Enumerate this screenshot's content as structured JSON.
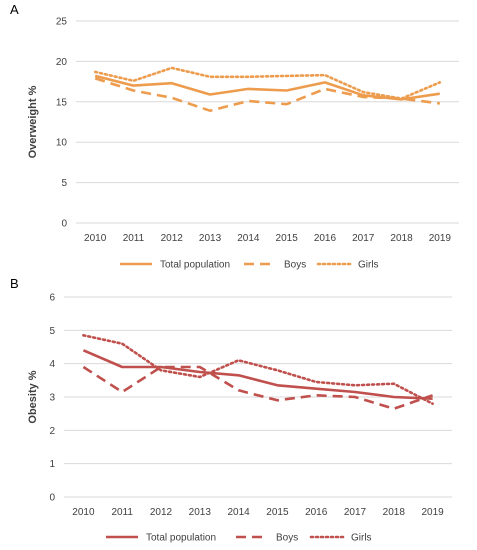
{
  "chart_data": [
    {
      "panel": "A",
      "type": "line",
      "ylabel": "Overweight %",
      "xlabel": "",
      "ylim": [
        0,
        25
      ],
      "yticks": [
        0,
        5,
        10,
        15,
        20,
        25
      ],
      "categories": [
        "2010",
        "2011",
        "2012",
        "2013",
        "2014",
        "2015",
        "2016",
        "2017",
        "2018",
        "2019"
      ],
      "color": "#ed9c4e",
      "grid": "horizontal",
      "legend": "bottom",
      "series": [
        {
          "name": "Total population",
          "style": "solid",
          "values": [
            18.2,
            17.0,
            17.3,
            15.9,
            16.6,
            16.4,
            17.4,
            15.8,
            15.3,
            16.0
          ]
        },
        {
          "name": "Boys",
          "style": "dashed",
          "values": [
            17.9,
            16.4,
            15.5,
            13.9,
            15.1,
            14.7,
            16.6,
            15.6,
            15.4,
            14.8
          ]
        },
        {
          "name": "Girls",
          "style": "dotted",
          "values": [
            18.7,
            17.6,
            19.2,
            18.1,
            18.1,
            18.2,
            18.3,
            16.2,
            15.4,
            17.4
          ]
        }
      ]
    },
    {
      "panel": "B",
      "type": "line",
      "ylabel": "Obesity %",
      "xlabel": "",
      "ylim": [
        0,
        6
      ],
      "yticks": [
        0,
        1,
        2,
        3,
        4,
        5,
        6
      ],
      "categories": [
        "2010",
        "2011",
        "2012",
        "2013",
        "2014",
        "2015",
        "2016",
        "2017",
        "2018",
        "2019"
      ],
      "color": "#c0504d",
      "grid": "horizontal",
      "legend": "bottom",
      "series": [
        {
          "name": "Total population",
          "style": "solid",
          "values": [
            4.4,
            3.9,
            3.9,
            3.75,
            3.65,
            3.35,
            3.25,
            3.15,
            3.0,
            2.95
          ]
        },
        {
          "name": "Boys",
          "style": "dashed",
          "values": [
            3.9,
            3.15,
            3.9,
            3.9,
            3.2,
            2.9,
            3.05,
            3.0,
            2.65,
            3.05
          ]
        },
        {
          "name": "Girls",
          "style": "dotted",
          "values": [
            4.85,
            4.6,
            3.8,
            3.6,
            4.1,
            3.8,
            3.45,
            3.35,
            3.4,
            2.8
          ]
        }
      ]
    }
  ]
}
